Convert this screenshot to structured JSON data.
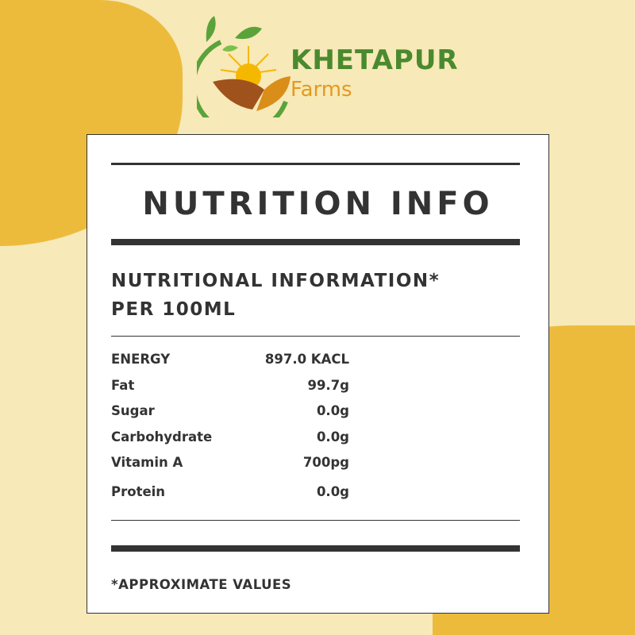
{
  "brand": {
    "name": "KHETAPUR",
    "sub": "Farms",
    "colors": {
      "green": "#4a8a2e",
      "orange": "#e59a1f"
    }
  },
  "label": {
    "title": "NUTRITION INFO",
    "heading_line1": "NUTRITIONAL INFORMATION*",
    "heading_line2": "PER 100ML",
    "rows": [
      {
        "name": "ENERGY",
        "value": "897.0 KACL"
      },
      {
        "name": "Fat",
        "value": "99.7g"
      },
      {
        "name": "Sugar",
        "value": "0.0g"
      },
      {
        "name": "Carbohydrate",
        "value": "0.0g"
      },
      {
        "name": "Vitamin A",
        "value": "700pg"
      },
      {
        "name": "Protein",
        "value": "0.0g"
      }
    ],
    "footnote": "*APPROXIMATE VALUES"
  }
}
